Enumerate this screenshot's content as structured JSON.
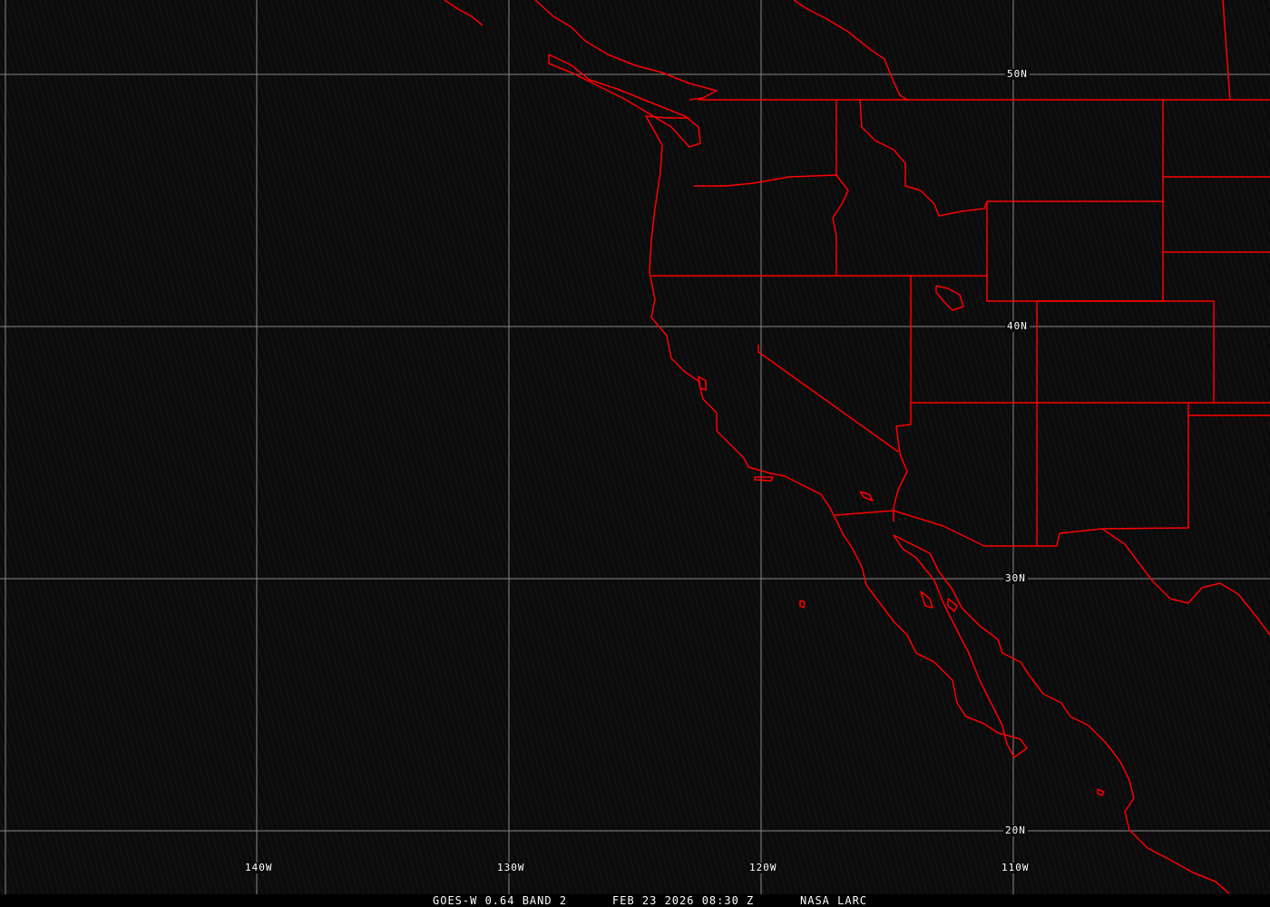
{
  "map": {
    "grid_color": "#888888",
    "boundary_color": "#ff0000",
    "lat_labels": [
      "50N",
      "40N",
      "30N",
      "20N"
    ],
    "lon_labels": [
      "140W",
      "130W",
      "120W",
      "110W"
    ]
  },
  "caption": {
    "product": "GOES-W 0.64 BAND 2",
    "datetime": "FEB 23 2026 08:30 Z",
    "source": "NASA LARC"
  }
}
